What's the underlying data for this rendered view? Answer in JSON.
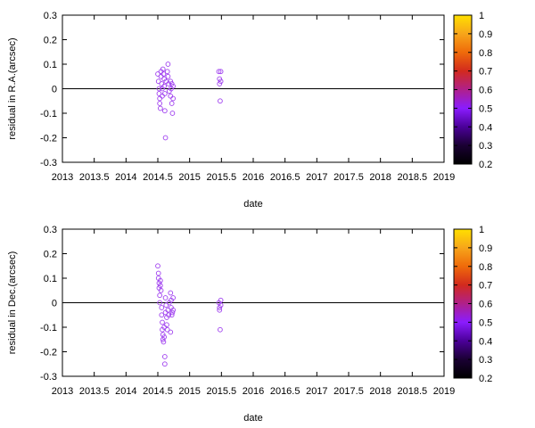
{
  "chart_data": [
    {
      "type": "scatter",
      "xlabel": "date",
      "ylabel": "residual in R.A.(arcsec)",
      "xlim": [
        2013,
        2019
      ],
      "ylim": [
        -0.3,
        0.3
      ],
      "xticks": [
        "2013",
        "2013.5",
        "2014",
        "2014.5",
        "2015",
        "2015.5",
        "2016",
        "2016.5",
        "2017",
        "2017.5",
        "2018",
        "2018.5",
        "2019"
      ],
      "yticks": [
        "0.3",
        "0.2",
        "0.1",
        "0",
        "-0.1",
        "-0.2",
        "-0.3"
      ],
      "zero_line": true,
      "marker": "open-circle",
      "point_color": "#9f3fef",
      "points": [
        [
          2014.5,
          0.06
        ],
        [
          2014.51,
          0.03
        ],
        [
          2014.52,
          0.0
        ],
        [
          2014.52,
          -0.02
        ],
        [
          2014.53,
          -0.04
        ],
        [
          2014.53,
          -0.06
        ],
        [
          2014.54,
          -0.08
        ],
        [
          2014.55,
          0.07
        ],
        [
          2014.55,
          0.05
        ],
        [
          2014.56,
          0.02
        ],
        [
          2014.57,
          0.0
        ],
        [
          2014.57,
          -0.03
        ],
        [
          2014.58,
          0.08
        ],
        [
          2014.59,
          0.06
        ],
        [
          2014.6,
          0.04
        ],
        [
          2014.6,
          0.01
        ],
        [
          2014.61,
          -0.02
        ],
        [
          2014.61,
          -0.09
        ],
        [
          2014.62,
          -0.2
        ],
        [
          2014.63,
          0.03
        ],
        [
          2014.65,
          0.07
        ],
        [
          2014.66,
          0.1
        ],
        [
          2014.66,
          0.05
        ],
        [
          2014.67,
          0.02
        ],
        [
          2014.68,
          -0.01
        ],
        [
          2014.7,
          0.03
        ],
        [
          2014.7,
          -0.03
        ],
        [
          2014.71,
          0.0
        ],
        [
          2014.72,
          0.02
        ],
        [
          2014.72,
          -0.06
        ],
        [
          2014.73,
          -0.1
        ],
        [
          2014.74,
          0.01
        ],
        [
          2014.74,
          -0.04
        ],
        [
          2015.46,
          0.07
        ],
        [
          2015.47,
          0.04
        ],
        [
          2015.47,
          0.02
        ],
        [
          2015.48,
          -0.05
        ],
        [
          2015.49,
          0.07
        ],
        [
          2015.49,
          0.03
        ]
      ]
    },
    {
      "type": "scatter",
      "xlabel": "date",
      "ylabel": "residual in Dec.(arcsec)",
      "xlim": [
        2013,
        2019
      ],
      "ylim": [
        -0.3,
        0.3
      ],
      "xticks": [
        "2013",
        "2013.5",
        "2014",
        "2014.5",
        "2015",
        "2015.5",
        "2016",
        "2016.5",
        "2017",
        "2017.5",
        "2018",
        "2018.5",
        "2019"
      ],
      "yticks": [
        "0.3",
        "0.2",
        "0.1",
        "0",
        "-0.1",
        "-0.2",
        "-0.3"
      ],
      "zero_line": true,
      "marker": "open-circle",
      "point_color": "#9f3fef",
      "points": [
        [
          2014.5,
          0.15
        ],
        [
          2014.51,
          0.12
        ],
        [
          2014.51,
          0.1
        ],
        [
          2014.52,
          0.08
        ],
        [
          2014.52,
          0.06
        ],
        [
          2014.53,
          0.03
        ],
        [
          2014.53,
          0.0
        ],
        [
          2014.54,
          0.09
        ],
        [
          2014.54,
          0.07
        ],
        [
          2014.55,
          0.05
        ],
        [
          2014.56,
          -0.02
        ],
        [
          2014.56,
          -0.05
        ],
        [
          2014.57,
          -0.08
        ],
        [
          2014.57,
          -0.11
        ],
        [
          2014.58,
          -0.13
        ],
        [
          2014.58,
          -0.15
        ],
        [
          2014.59,
          -0.16
        ],
        [
          2014.6,
          -0.14
        ],
        [
          2014.6,
          -0.1
        ],
        [
          2014.61,
          -0.22
        ],
        [
          2014.61,
          -0.25
        ],
        [
          2014.62,
          -0.04
        ],
        [
          2014.62,
          0.02
        ],
        [
          2014.63,
          -0.01
        ],
        [
          2014.64,
          -0.06
        ],
        [
          2014.64,
          -0.09
        ],
        [
          2014.65,
          -0.11
        ],
        [
          2014.66,
          -0.03
        ],
        [
          2014.67,
          -0.05
        ],
        [
          2014.68,
          0.0
        ],
        [
          2014.7,
          0.04
        ],
        [
          2014.7,
          -0.12
        ],
        [
          2014.71,
          0.01
        ],
        [
          2014.71,
          -0.02
        ],
        [
          2014.72,
          -0.05
        ],
        [
          2014.73,
          -0.04
        ],
        [
          2014.74,
          0.02
        ],
        [
          2014.74,
          -0.03
        ],
        [
          2015.46,
          0.0
        ],
        [
          2015.47,
          -0.02
        ],
        [
          2015.47,
          -0.03
        ],
        [
          2015.48,
          -0.11
        ],
        [
          2015.49,
          0.01
        ],
        [
          2015.49,
          -0.01
        ]
      ]
    }
  ],
  "colorbar": {
    "ticks": [
      "1",
      "0.9",
      "0.8",
      "0.7",
      "0.6",
      "0.5",
      "0.4",
      "0.3",
      "0.2"
    ],
    "range": [
      0.2,
      1
    ],
    "palette_stops": [
      "#000000",
      "#1a0033",
      "#4b0099",
      "#8a1cff",
      "#b0208a",
      "#d22a1e",
      "#ef6a0a",
      "#f7a51a",
      "#ffe000"
    ]
  }
}
